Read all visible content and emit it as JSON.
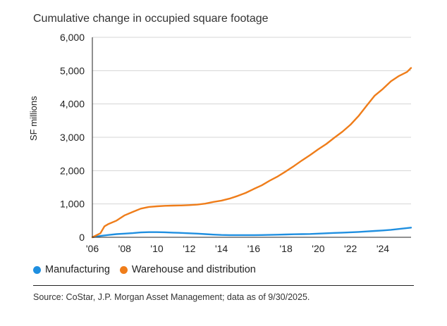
{
  "chart_data": {
    "type": "line",
    "title": "Cumulative change in occupied square footage",
    "ylabel": "SF millions",
    "ylim": [
      0,
      6000
    ],
    "yticks": [
      0,
      1000,
      2000,
      3000,
      4000,
      5000,
      6000
    ],
    "ytick_labels": [
      "0",
      "1,000",
      "2,000",
      "3,000",
      "4,000",
      "5,000",
      "6,000"
    ],
    "xlim": [
      2006,
      2025.75
    ],
    "xticks": [
      2006,
      2008,
      2010,
      2012,
      2014,
      2016,
      2018,
      2020,
      2022,
      2024
    ],
    "xtick_labels": [
      "'06",
      "'08",
      "'10",
      "'12",
      "'14",
      "'16",
      "'18",
      "'20",
      "'22",
      "'24"
    ],
    "grid": true,
    "legend_position": "bottom-left",
    "series": [
      {
        "name": "Manufacturing",
        "color": "#1f8fe0",
        "x": [
          2006,
          2006.5,
          2007,
          2007.5,
          2008,
          2008.5,
          2009,
          2009.5,
          2010,
          2010.5,
          2011,
          2011.5,
          2012,
          2012.5,
          2013,
          2013.5,
          2014,
          2014.5,
          2015,
          2015.5,
          2016,
          2016.5,
          2017,
          2017.5,
          2018,
          2018.5,
          2019,
          2019.5,
          2020,
          2020.5,
          2021,
          2021.5,
          2022,
          2022.5,
          2023,
          2023.5,
          2024,
          2024.5,
          2025,
          2025.75
        ],
        "values": [
          0,
          40,
          70,
          95,
          110,
          125,
          145,
          155,
          155,
          150,
          140,
          130,
          120,
          110,
          95,
          80,
          70,
          65,
          65,
          65,
          65,
          68,
          72,
          78,
          85,
          90,
          95,
          100,
          110,
          120,
          130,
          140,
          150,
          160,
          175,
          190,
          205,
          225,
          250,
          290
        ]
      },
      {
        "name": "Warehouse and distribution",
        "color": "#ef7d1a",
        "x": [
          2006,
          2006.5,
          2006.75,
          2007,
          2007.5,
          2008,
          2008.5,
          2009,
          2009.5,
          2010,
          2010.5,
          2011,
          2011.5,
          2012,
          2012.5,
          2013,
          2013.5,
          2014,
          2014.5,
          2015,
          2015.5,
          2016,
          2016.5,
          2017,
          2017.5,
          2018,
          2018.5,
          2019,
          2019.5,
          2020,
          2020.5,
          2021,
          2021.5,
          2022,
          2022.5,
          2023,
          2023.5,
          2024,
          2024.5,
          2025,
          2025.5,
          2025.75
        ],
        "values": [
          0,
          120,
          330,
          400,
          500,
          660,
          760,
          860,
          910,
          930,
          945,
          950,
          955,
          965,
          980,
          1010,
          1060,
          1100,
          1160,
          1240,
          1330,
          1450,
          1560,
          1700,
          1830,
          1980,
          2140,
          2310,
          2470,
          2640,
          2800,
          2990,
          3170,
          3380,
          3640,
          3950,
          4250,
          4450,
          4680,
          4840,
          4960,
          5080
        ]
      }
    ]
  },
  "legend": {
    "items": [
      {
        "label": "Manufacturing",
        "color": "#1f8fe0"
      },
      {
        "label": "Warehouse and distribution",
        "color": "#ef7d1a"
      }
    ]
  },
  "source": "Source: CoStar, J.P. Morgan Asset Management; data as of 9/30/2025."
}
